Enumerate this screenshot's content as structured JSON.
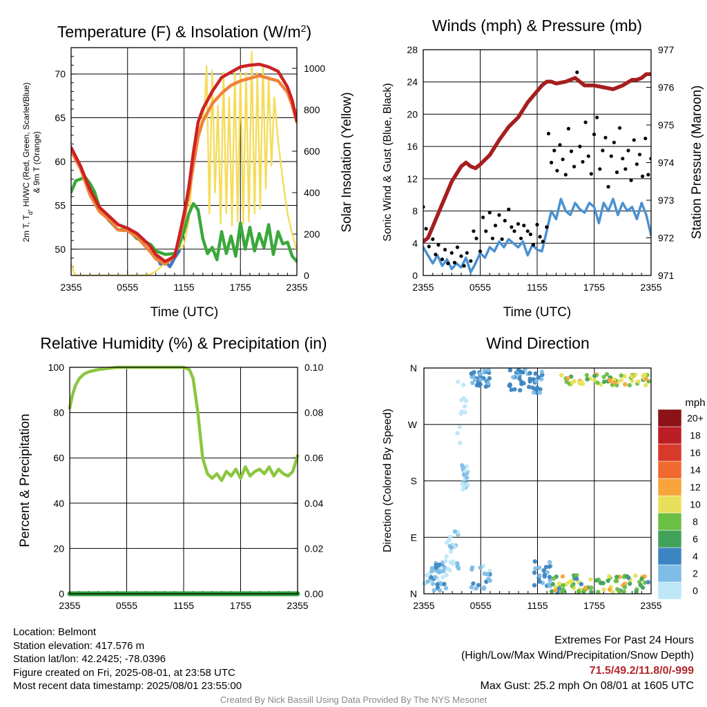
{
  "colors": {
    "temp_2m": "#cc2222",
    "dewpoint": "#3aa83a",
    "heat_index": "#3a78c0",
    "temp_9m": "#f0823a",
    "insolation": "#f5dc5a",
    "wind": "#4a90d2",
    "gust": "#000000",
    "pressure": "#a61e1e",
    "rh": "#8cc63f",
    "precip": "#2e9a3a"
  },
  "chart_data": [
    {
      "id": "temp",
      "type": "line",
      "title": "Temperature (F) & Insolation (W/m",
      "title_sup": "2",
      "title_end": ")",
      "xlabel": "Time (UTC)",
      "ylabel_line1": "2m T, T",
      "ylabel_sub": "d",
      "ylabel_line1_end": ", HI/WC (Red, Green, Scarlet/Blue)",
      "ylabel_line2": "& 9m T (Orange)",
      "y2label": "Solar Insolation (Yellow)",
      "x_range": [
        0,
        24
      ],
      "x_ticks": [
        "2355",
        "0555",
        "1155",
        "1755",
        "2355"
      ],
      "ylim": [
        47,
        73
      ],
      "y_ticks": [
        "50",
        "55",
        "60",
        "65",
        "70"
      ],
      "y2lim": [
        0,
        1100
      ],
      "y2_ticks": [
        "0",
        "200",
        "400",
        "600",
        "800",
        "1000"
      ],
      "series": [
        {
          "key": "temp_2m",
          "x": [
            0,
            1,
            2,
            3,
            4,
            5,
            6,
            7,
            8,
            8.5,
            9,
            10,
            11,
            11.5,
            12,
            12.5,
            13,
            13.5,
            14,
            15,
            16,
            17,
            18,
            19,
            20,
            21,
            22,
            23,
            23.5,
            24
          ],
          "y": [
            61.6,
            59.5,
            56.8,
            54.8,
            53.8,
            52.8,
            52.4,
            51.8,
            50.8,
            50.2,
            49.4,
            48.6,
            49.2,
            51.5,
            54,
            57,
            61,
            64.5,
            66,
            68,
            69.6,
            70.2,
            70.8,
            71,
            71.1,
            70.8,
            70.3,
            68.5,
            67,
            64.6
          ]
        },
        {
          "key": "temp_9m",
          "x": [
            0,
            1,
            2,
            3,
            4,
            5,
            6,
            7,
            8,
            8.5,
            9,
            10,
            11,
            11.5,
            12,
            12.5,
            13,
            13.5,
            14,
            15,
            16,
            17,
            18,
            19,
            20,
            21,
            22,
            23,
            23.5,
            24
          ],
          "y": [
            61.2,
            59.2,
            56.2,
            54.3,
            53.4,
            52.2,
            52.1,
            51.4,
            50.2,
            49.6,
            48.9,
            48.3,
            49.2,
            51.2,
            53.4,
            56.2,
            59.6,
            62.8,
            64.6,
            66.6,
            67.8,
            68.7,
            69.2,
            69.5,
            69.8,
            69.5,
            69.2,
            67.9,
            66.4,
            64.5
          ]
        },
        {
          "key": "heat_index",
          "x": [
            9,
            9.5,
            10,
            10.5,
            11,
            11.5
          ],
          "y": [
            49.4,
            48.3,
            48.6,
            48.0,
            49.0,
            49.8
          ]
        },
        {
          "key": "dewpoint",
          "x": [
            0,
            0.5,
            1,
            1.5,
            2,
            2.5,
            3,
            4,
            5,
            6,
            7,
            8,
            8.5,
            9,
            10,
            11,
            11.5,
            12,
            12.5,
            13,
            13.5,
            14,
            14.5,
            15,
            15.5,
            16,
            16.5,
            17,
            17.5,
            18,
            18.5,
            19,
            19.5,
            20,
            20.5,
            21,
            21.5,
            22,
            22.5,
            23,
            23.5,
            24
          ],
          "y": [
            56.5,
            57.8,
            58,
            58.2,
            57.5,
            56.5,
            54.8,
            53.3,
            52.2,
            52.3,
            51.2,
            50.8,
            50.5,
            49.8,
            49.4,
            49.5,
            50.5,
            52,
            54,
            55.2,
            54.5,
            51.2,
            49.5,
            50.2,
            48.8,
            52,
            49.5,
            51.5,
            49.2,
            53,
            50,
            52.5,
            49.8,
            51.8,
            50.2,
            52.8,
            49.4,
            52,
            50.6,
            50.8,
            49.2,
            48.6
          ]
        },
        {
          "key": "insolation",
          "axis": "y2",
          "x": [
            0,
            0.25,
            0.5,
            1,
            2,
            3,
            4,
            5,
            6,
            7,
            8,
            8.5,
            9,
            9.5,
            10,
            10.5,
            11,
            11.5,
            12,
            12.5,
            13,
            13.5,
            14,
            14.2,
            14.4,
            14.7,
            15,
            15.3,
            15.6,
            15.9,
            16.2,
            16.5,
            16.8,
            17.1,
            17.4,
            17.7,
            18,
            18.3,
            18.6,
            18.9,
            19.2,
            19.5,
            19.8,
            20.1,
            20.4,
            20.7,
            21,
            21.3,
            21.6,
            22,
            22.5,
            23,
            23.5,
            24
          ],
          "y": [
            55,
            20,
            0,
            0,
            0,
            0,
            0,
            0,
            0,
            0,
            2,
            8,
            20,
            40,
            60,
            80,
            110,
            130,
            150,
            260,
            560,
            700,
            760,
            820,
            1010,
            300,
            990,
            400,
            820,
            250,
            980,
            300,
            860,
            240,
            980,
            260,
            980,
            250,
            980,
            260,
            1080,
            300,
            980,
            320,
            1020,
            420,
            960,
            530,
            860,
            650,
            460,
            300,
            200,
            120
          ]
        }
      ]
    },
    {
      "id": "wind",
      "type": "scatter",
      "title": "Winds (mph) & Pressure (mb)",
      "xlabel": "Time (UTC)",
      "ylabel": "Sonic Wind & Gust (Blue, Black)",
      "y2label": "Station Pressure (Maroon)",
      "x_range": [
        0,
        24
      ],
      "x_ticks": [
        "2355",
        "0555",
        "1155",
        "1755",
        "2355"
      ],
      "ylim": [
        0,
        28
      ],
      "y_ticks": [
        "0",
        "4",
        "8",
        "12",
        "16",
        "20",
        "24",
        "28"
      ],
      "y2lim": [
        971,
        977
      ],
      "y2_ticks": [
        "971",
        "972",
        "973",
        "974",
        "975",
        "976",
        "977"
      ],
      "series": [
        {
          "key": "pressure",
          "kind": "line",
          "x": [
            0,
            0.5,
            1,
            2,
            3,
            4,
            4.5,
            5,
            5.5,
            6,
            7,
            8,
            9,
            10,
            11,
            12,
            12.5,
            13,
            13.5,
            14,
            15,
            16,
            17,
            18,
            19,
            20,
            21,
            22,
            22.5,
            23,
            23.5,
            24
          ],
          "y": [
            971.9,
            972.0,
            972.3,
            972.9,
            973.5,
            973.9,
            974.0,
            973.9,
            973.85,
            973.95,
            974.2,
            974.6,
            974.95,
            975.2,
            975.6,
            975.9,
            976.05,
            976.15,
            976.15,
            976.1,
            976.15,
            976.25,
            976.05,
            976.05,
            976.0,
            975.95,
            976.05,
            976.2,
            976.2,
            976.25,
            976.35,
            976.35
          ]
        },
        {
          "key": "wind",
          "kind": "line",
          "x": [
            0,
            0.5,
            1,
            1.5,
            2,
            2.5,
            3,
            3.5,
            4,
            4.5,
            5,
            5.5,
            6,
            6.5,
            7,
            7.5,
            8,
            8.5,
            9,
            9.5,
            10,
            10.5,
            11,
            11.5,
            12,
            12.5,
            13,
            13.5,
            14,
            14.5,
            15,
            15.5,
            16,
            16.5,
            17,
            17.5,
            18,
            18.5,
            19,
            19.5,
            20,
            20.5,
            21,
            21.5,
            22,
            22.5,
            23,
            23.5,
            24
          ],
          "y": [
            3.5,
            2.5,
            1.5,
            2.5,
            1.2,
            2,
            0.8,
            1.5,
            1,
            2.2,
            0.4,
            1.5,
            2.8,
            2.2,
            3.5,
            3,
            4.2,
            3.5,
            4.5,
            4,
            3.5,
            4.2,
            2.5,
            3.8,
            3.2,
            3,
            5.5,
            8,
            7,
            9.5,
            8,
            7.5,
            9,
            8.2,
            7.8,
            9,
            8.5,
            6.5,
            9,
            8,
            9.5,
            7.5,
            9,
            8,
            8.5,
            7,
            9,
            7.5,
            5
          ]
        },
        {
          "key": "gust",
          "kind": "points",
          "x": [
            0,
            0.3,
            0.6,
            1,
            1.3,
            1.6,
            2,
            2.3,
            2.6,
            3,
            3.3,
            3.6,
            4,
            4.3,
            4.6,
            5,
            5.3,
            5.6,
            6,
            6.3,
            6.6,
            7,
            7.3,
            7.6,
            8,
            8.3,
            8.6,
            9,
            9.3,
            9.6,
            10,
            10.3,
            10.6,
            11,
            11.3,
            11.6,
            12,
            12.3,
            12.6,
            13,
            13.2,
            13.5,
            13.8,
            14.1,
            14.4,
            14.7,
            15,
            15.3,
            15.6,
            15.9,
            16.2,
            16.5,
            16.8,
            17.1,
            17.4,
            17.7,
            18,
            18.3,
            18.6,
            18.9,
            19.2,
            19.5,
            19.8,
            20.1,
            20.4,
            20.7,
            21,
            21.3,
            21.6,
            21.9,
            22.2,
            22.5,
            22.8,
            23.1,
            23.4,
            23.7,
            24
          ],
          "y": [
            8.5,
            5.8,
            3.6,
            4.5,
            2.6,
            3.8,
            2,
            3.2,
            1.5,
            2.8,
            1.6,
            3.5,
            2.4,
            1.2,
            2.8,
            1.8,
            5.5,
            4.6,
            3,
            7.2,
            5.5,
            7.8,
            4.6,
            6.2,
            7.5,
            4.5,
            6.8,
            8.2,
            6,
            5.5,
            6.4,
            4.6,
            6.2,
            5.5,
            5.1,
            3.8,
            6.3,
            4.8,
            4.2,
            6,
            17.6,
            14,
            15.5,
            13,
            16.2,
            14.4,
            12.5,
            18.2,
            15.4,
            13.5,
            25.2,
            16,
            14.1,
            19,
            14.8,
            12.6,
            17.5,
            19.6,
            13.2,
            15.5,
            17.1,
            11,
            14.8,
            16.5,
            12.8,
            18.3,
            14.5,
            13.2,
            15.5,
            11.8,
            16.8,
            13.8,
            15,
            12.3,
            17,
            12.5,
            14.5
          ]
        }
      ]
    },
    {
      "id": "rh",
      "type": "line",
      "title": "Relative Humidity (%) & Precipitation (in)",
      "xlabel": "",
      "ylabel": "Percent & Precipitation",
      "x_range": [
        0,
        24
      ],
      "x_ticks": [
        "2355",
        "0555",
        "1155",
        "1755",
        "2355"
      ],
      "ylim": [
        0,
        100
      ],
      "y_ticks": [
        "0",
        "20",
        "40",
        "60",
        "80",
        "100"
      ],
      "y2lim": [
        0,
        0.1
      ],
      "y2_ticks": [
        "0.00",
        "0.02",
        "0.04",
        "0.06",
        "0.08",
        "0.10"
      ],
      "series": [
        {
          "key": "rh",
          "x": [
            0,
            0.3,
            0.6,
            1,
            1.5,
            2,
            2.5,
            3,
            4,
            5,
            6,
            8,
            10,
            12,
            12.6,
            13,
            13.5,
            14,
            14.5,
            15,
            15.5,
            16,
            16.5,
            17,
            17.5,
            18,
            18.5,
            19,
            19.5,
            20,
            20.5,
            21,
            21.5,
            22,
            22.5,
            23,
            23.5,
            24
          ],
          "y": [
            82,
            88,
            92,
            95,
            97,
            98,
            98.5,
            99,
            99.5,
            100,
            100,
            100,
            100,
            100,
            99,
            95,
            80,
            60,
            53,
            51,
            53,
            50,
            54,
            52,
            55,
            51,
            56,
            52,
            54,
            55,
            53,
            56,
            52,
            55,
            53,
            52,
            54,
            61
          ]
        },
        {
          "key": "precip",
          "x": [
            0,
            24
          ],
          "y": [
            0,
            0
          ]
        }
      ]
    },
    {
      "id": "dir",
      "type": "scatter",
      "title": "Wind Direction",
      "ylabel": "Direction (Colored By Speed)",
      "x_range": [
        0,
        24
      ],
      "x_ticks": [
        "2355",
        "0555",
        "1155",
        "1755",
        "2355"
      ],
      "ylim": [
        0,
        360
      ],
      "y_ticks": [
        "N",
        "E",
        "S",
        "W",
        "N"
      ],
      "legend_title": "mph",
      "legend_labels": [
        "0",
        "2",
        "4",
        "6",
        "8",
        "10",
        "12",
        "14",
        "16",
        "18",
        "20+"
      ],
      "legend_colors": [
        "#bfe6f7",
        "#7fbde6",
        "#3d85c2",
        "#41a35a",
        "#6cbf45",
        "#e8e05a",
        "#f9a43a",
        "#ef6a2c",
        "#d8392a",
        "#bc1e26",
        "#8b1217"
      ]
    }
  ],
  "info": {
    "location": "Location: Belmont",
    "elevation": "Station elevation: 417.576 m",
    "latlon": "Station lat/lon: 42.2425; -78.0396",
    "created": "Figure created on Fri, 2025-08-01, at 23:58 UTC",
    "recent": "Most recent data timestamp: 2025/08/01 23:55:00"
  },
  "extremes": {
    "title": "Extremes For Past 24 Hours",
    "subtitle": "(High/Low/Max Wind/Precipitation/Snow Depth)",
    "values": "71.5/49.2/11.8/0/-999",
    "gust": "Max Gust: 25.2 mph On 08/01 at 1605 UTC"
  },
  "credit": "Created By Nick Bassill Using Data Provided By The NYS Mesonet"
}
